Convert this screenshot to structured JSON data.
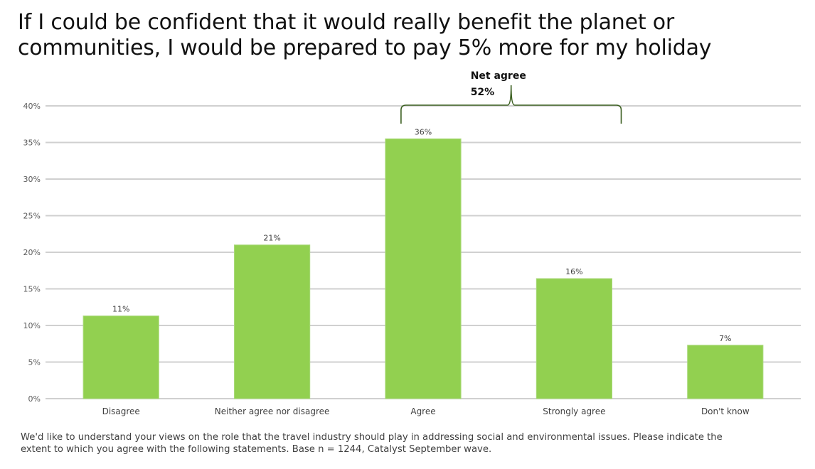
{
  "chart_data": {
    "type": "bar",
    "title": "If I could be confident that it would really benefit the planet or communities, I would be prepared to pay 5% more for my holiday",
    "title_lines": [
      "If I could be confident that it would really benefit the planet or",
      "communities, I would be prepared to pay 5% more for my holiday"
    ],
    "categories": [
      "Disagree",
      "Neither agree nor disagree",
      "Agree",
      "Strongly agree",
      "Don't know"
    ],
    "values": [
      11.3,
      21,
      35.5,
      16.4,
      7.3
    ],
    "data_labels": [
      "11%",
      "21%",
      "36%",
      "16%",
      "7%"
    ],
    "xlabel": "",
    "ylabel": "",
    "ylim": [
      0,
      40
    ],
    "yticks": [
      0,
      5,
      10,
      15,
      20,
      25,
      30,
      35,
      40
    ],
    "ytick_labels": [
      "0%",
      "5%",
      "10%",
      "15%",
      "20%",
      "25%",
      "30%",
      "35%",
      "40%"
    ],
    "grid": true,
    "legend": "none",
    "bar_color": "#92d050",
    "annotation": {
      "line1": "Net agree",
      "line2": "52%",
      "spans": [
        "Agree",
        "Strongly agree"
      ],
      "bracket_color": "#3a5e1f"
    }
  },
  "footnote": {
    "lines": [
      "We'd like to understand your views on the role that the travel industry should play in addressing social and environmental issues. Please indicate the",
      "extent to which you agree with the following statements. Base n = 1244, Catalyst September wave."
    ]
  }
}
